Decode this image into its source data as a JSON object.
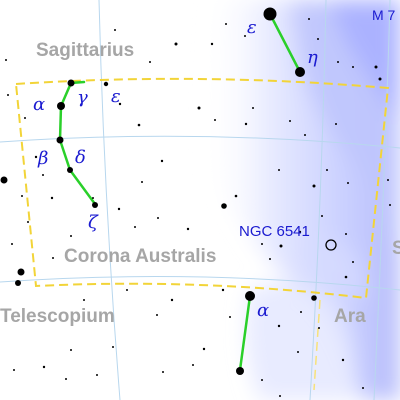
{
  "constellations": {
    "corona_australis": "Corona Australis",
    "sagittarius": "Sagittarius",
    "telescopium": "Telescopium",
    "ara": "Ara"
  },
  "stars": {
    "alpha_cra": "α",
    "beta_cra": "β",
    "gamma_cra": "γ",
    "delta_cra": "δ",
    "epsilon_cra": "ε",
    "zeta_cra": "ζ",
    "epsilon_sgr": "ε",
    "eta_sgr": "η",
    "alpha_tel": "α"
  },
  "deep_sky": {
    "ngc6541": "NGC 6541"
  },
  "edge_labels": {
    "m7": "M 7",
    "sco_partial": "S"
  },
  "colors": {
    "background": "#ffffff",
    "milky_way": "#c8ceff",
    "grid": "#b8d7ee",
    "boundary": "#f2d438",
    "boundary_other": "#f7e27a",
    "figure_line": "#2ad02a",
    "label": "#1a1ad0",
    "constellation_name": "#a6a6a6",
    "star": "#000000"
  }
}
